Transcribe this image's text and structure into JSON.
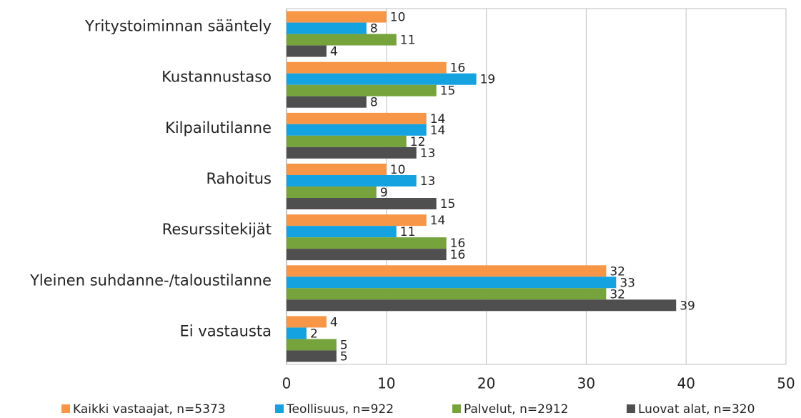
{
  "chart_data": {
    "type": "bar",
    "categories": [
      "Yritystoiminnan sääntely",
      "Kustannustaso",
      "Kilpailutilanne",
      "Rahoitus",
      "Resurssitekijät",
      "Yleinen suhdanne-/taloustilanne",
      "Ei vastausta"
    ],
    "series": [
      {
        "name": "Kaikki vastaajat, n=5373",
        "color": "#f79646",
        "values": [
          10,
          16,
          14,
          10,
          14,
          32,
          4
        ]
      },
      {
        "name": "Teollisuus, n=922",
        "color": "#14a3e0",
        "values": [
          8,
          19,
          14,
          13,
          11,
          33,
          2
        ]
      },
      {
        "name": "Palvelut, n=2912",
        "color": "#77a33d",
        "values": [
          11,
          15,
          12,
          9,
          16,
          32,
          5
        ]
      },
      {
        "name": "Luovat alat, n=320",
        "color": "#4f4f4f",
        "values": [
          4,
          8,
          13,
          15,
          16,
          39,
          5
        ]
      }
    ],
    "xlim": [
      0,
      50
    ],
    "xticks": [
      0,
      10,
      20,
      30,
      40,
      50
    ],
    "grid": true
  }
}
